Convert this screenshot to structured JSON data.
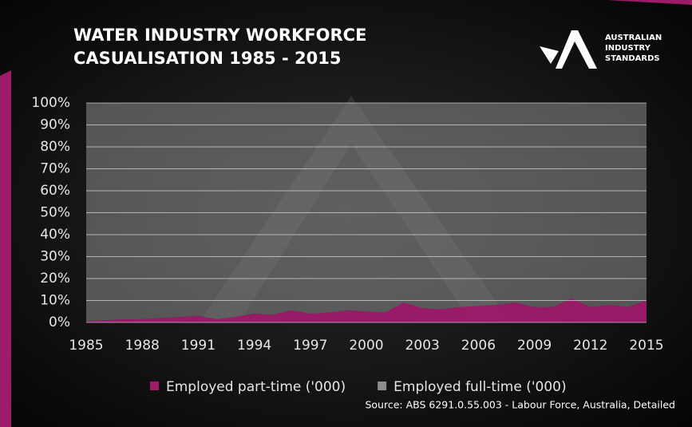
{
  "chart_data": {
    "type": "area",
    "title": [
      "WATER INDUSTRY WORKFORCE",
      "CASUALISATION 1985 - 2015"
    ],
    "logo": [
      "AUSTRALIAN",
      "INDUSTRY",
      "STANDARDS"
    ],
    "source": "Source: ABS 6291.0.55.003  - Labour Force, Australia, Detailed",
    "stacked": true,
    "x": [
      1985,
      1986,
      1987,
      1988,
      1989,
      1990,
      1991,
      1992,
      1993,
      1994,
      1995,
      1996,
      1997,
      1998,
      1999,
      2000,
      2001,
      2002,
      2003,
      2004,
      2005,
      2006,
      2007,
      2008,
      2009,
      2010,
      2011,
      2012,
      2013,
      2014,
      2015
    ],
    "xlim": [
      1985,
      2015
    ],
    "xticks": [
      1985,
      1988,
      1991,
      1994,
      1997,
      2000,
      2003,
      2006,
      2009,
      2012,
      2015
    ],
    "ylim": [
      0,
      100
    ],
    "yticks": [
      {
        "value": 0,
        "label": "0%"
      },
      {
        "value": 10,
        "label": "10%"
      },
      {
        "value": 20,
        "label": "20%"
      },
      {
        "value": 30,
        "label": "30%"
      },
      {
        "value": 40,
        "label": "40%"
      },
      {
        "value": 50,
        "label": "50%"
      },
      {
        "value": 60,
        "label": "60%"
      },
      {
        "value": 70,
        "label": "70%"
      },
      {
        "value": 80,
        "label": "80%"
      },
      {
        "value": 90,
        "label": "90%"
      },
      {
        "value": 100,
        "label": "100%"
      }
    ],
    "grid": true,
    "series": [
      {
        "name": "Employed part-time ('000)",
        "color": "#9e1b6a",
        "values": [
          0.5,
          1,
          1.5,
          1.5,
          2,
          2.5,
          3,
          1.5,
          2.5,
          4,
          3.5,
          5.5,
          4,
          4.5,
          5.5,
          5,
          4.5,
          9,
          6.5,
          6,
          7,
          7.5,
          8,
          9,
          7,
          7,
          11,
          7,
          8,
          7,
          10
        ]
      },
      {
        "name": "Employed full-time ('000)",
        "color": "#8c8c8c",
        "values": [
          99.5,
          99,
          98.5,
          98.5,
          98,
          97.5,
          97,
          98.5,
          97.5,
          96,
          96.5,
          94.5,
          96,
          95.5,
          94.5,
          95,
          95.5,
          91,
          93.5,
          94,
          93,
          92.5,
          92,
          91,
          93,
          93,
          89,
          93,
          92,
          93,
          90
        ]
      }
    ]
  }
}
